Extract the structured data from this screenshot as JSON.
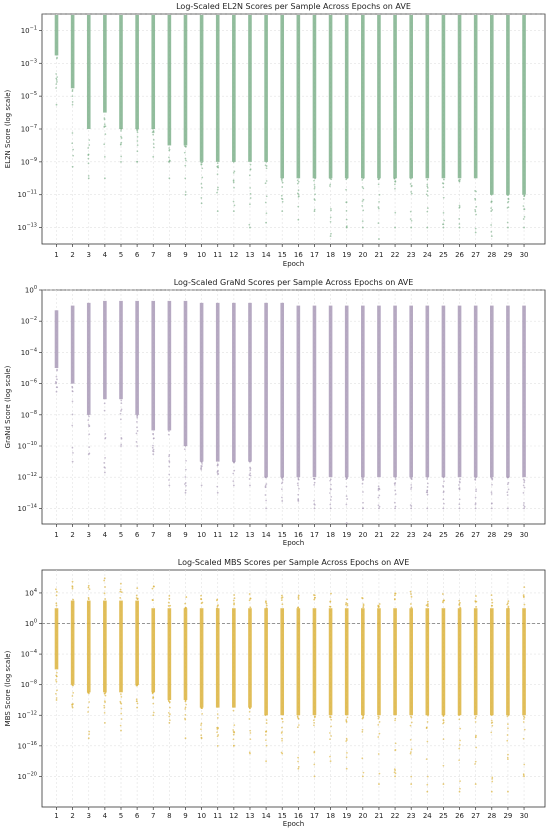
{
  "chart_data": [
    {
      "type": "scatter",
      "title": "Log-Scaled EL2N Scores per Sample Across Epochs on AVE",
      "xlabel": "Epoch",
      "ylabel": "EL2N Score (log scale)",
      "yscale": "log",
      "x": [
        1,
        2,
        3,
        4,
        5,
        6,
        7,
        8,
        9,
        10,
        11,
        12,
        13,
        14,
        15,
        16,
        17,
        18,
        19,
        20,
        21,
        22,
        23,
        24,
        25,
        26,
        27,
        28,
        29,
        30
      ],
      "xtick_labels": [
        "1",
        "2",
        "3",
        "4",
        "5",
        "6",
        "7",
        "8",
        "9",
        "10",
        "11",
        "12",
        "13",
        "14",
        "15",
        "16",
        "17",
        "18",
        "19",
        "20",
        "21",
        "22",
        "23",
        "24",
        "25",
        "26",
        "27",
        "28",
        "29",
        "30"
      ],
      "ylim": [
        1e-14,
        1
      ],
      "yticks": [
        {
          "value": 0.1,
          "exp": "-1"
        },
        {
          "value": 0.001,
          "exp": "-3"
        },
        {
          "value": 1e-05,
          "exp": "-5"
        },
        {
          "value": 1e-07,
          "exp": "-7"
        },
        {
          "value": 1e-09,
          "exp": "-9"
        },
        {
          "value": 1e-11,
          "exp": "-11"
        },
        {
          "value": 1e-13,
          "exp": "-13"
        }
      ],
      "reference_line": 1,
      "color": "#7fb28c",
      "grid": true,
      "dense_top": 1,
      "dense_bottom": [
        0.003,
        3e-05,
        1e-07,
        1e-06,
        1e-07,
        1e-07,
        1e-07,
        1e-08,
        1e-08,
        1e-09,
        1e-09,
        1e-09,
        1e-09,
        1e-09,
        1e-10,
        1e-10,
        1e-10,
        1e-10,
        1e-10,
        1e-10,
        1e-10,
        1e-10,
        1e-10,
        1e-10,
        1e-10,
        1e-10,
        1e-10,
        1e-11,
        1e-11,
        1e-11
      ],
      "min": [
        3e-06,
        5e-10,
        1e-10,
        1e-10,
        1e-09,
        1e-09,
        2e-09,
        1e-10,
        1e-11,
        3e-12,
        1e-12,
        1e-12,
        1e-13,
        2e-13,
        1e-12,
        3e-13,
        1e-12,
        3e-14,
        1e-13,
        1e-13,
        2e-14,
        1e-13,
        1e-13,
        1e-13,
        1e-13,
        1e-13,
        5e-14,
        3e-14,
        1e-13,
        1e-13
      ]
    },
    {
      "type": "scatter",
      "title": "Log-Scaled GraNd Scores per Sample Across Epochs on AVE",
      "xlabel": "Epoch",
      "ylabel": "GraNd Score (log scale)",
      "yscale": "log",
      "x": [
        1,
        2,
        3,
        4,
        5,
        6,
        7,
        8,
        9,
        10,
        11,
        12,
        13,
        14,
        15,
        16,
        17,
        18,
        19,
        20,
        21,
        22,
        23,
        24,
        25,
        26,
        27,
        28,
        29,
        30
      ],
      "xtick_labels": [
        "1",
        "2",
        "3",
        "4",
        "5",
        "6",
        "7",
        "8",
        "9",
        "10",
        "11",
        "12",
        "13",
        "14",
        "15",
        "16",
        "17",
        "18",
        "19",
        "20",
        "21",
        "22",
        "23",
        "24",
        "25",
        "26",
        "27",
        "28",
        "29",
        "30"
      ],
      "ylim": [
        1e-15,
        1
      ],
      "yticks": [
        {
          "value": 1,
          "exp": "0"
        },
        {
          "value": 0.01,
          "exp": "-2"
        },
        {
          "value": 0.0001,
          "exp": "-4"
        },
        {
          "value": 1e-06,
          "exp": "-6"
        },
        {
          "value": 1e-08,
          "exp": "-8"
        },
        {
          "value": 1e-10,
          "exp": "-10"
        },
        {
          "value": 1e-12,
          "exp": "-12"
        },
        {
          "value": 1e-14,
          "exp": "-14"
        }
      ],
      "reference_line": 1,
      "color": "#a99ab7",
      "grid": true,
      "dense_top": [
        0.05,
        0.1,
        0.15,
        0.2,
        0.2,
        0.2,
        0.2,
        0.2,
        0.2,
        0.15,
        0.15,
        0.15,
        0.15,
        0.15,
        0.15,
        0.1,
        0.1,
        0.1,
        0.1,
        0.1,
        0.1,
        0.1,
        0.1,
        0.1,
        0.1,
        0.1,
        0.1,
        0.1,
        0.1,
        0.1
      ],
      "dense_bottom": [
        1e-05,
        1e-06,
        1e-08,
        1e-07,
        1e-07,
        1e-08,
        1e-09,
        1e-09,
        1e-10,
        1e-11,
        1e-11,
        1e-11,
        1e-11,
        1e-12,
        1e-12,
        1e-12,
        1e-12,
        1e-12,
        1e-12,
        1e-12,
        1e-12,
        1e-12,
        1e-12,
        1e-12,
        1e-12,
        1e-12,
        1e-12,
        1e-12,
        1e-12,
        1e-12
      ],
      "min": [
        3e-07,
        1e-11,
        3e-11,
        2e-12,
        1e-10,
        1e-10,
        3e-11,
        3e-13,
        1e-13,
        3e-13,
        1e-13,
        3e-13,
        3e-13,
        1e-14,
        3e-14,
        3e-14,
        1e-14,
        1e-14,
        1e-15,
        1e-14,
        1e-14,
        1e-14,
        1e-14,
        1e-14,
        1e-14,
        1e-14,
        1e-14,
        1e-14,
        1e-14,
        1e-14
      ]
    },
    {
      "type": "scatter",
      "title": "Log-Scaled MBS Scores per Sample Across Epochs on AVE",
      "xlabel": "Epoch",
      "ylabel": "MBS Score (log scale)",
      "yscale": "log",
      "x": [
        1,
        2,
        3,
        4,
        5,
        6,
        7,
        8,
        9,
        10,
        11,
        12,
        13,
        14,
        15,
        16,
        17,
        18,
        19,
        20,
        21,
        22,
        23,
        24,
        25,
        26,
        27,
        28,
        29,
        30
      ],
      "xtick_labels": [
        "1",
        "2",
        "3",
        "4",
        "5",
        "6",
        "7",
        "8",
        "9",
        "10",
        "11",
        "12",
        "13",
        "14",
        "15",
        "16",
        "17",
        "18",
        "19",
        "20",
        "21",
        "22",
        "23",
        "24",
        "25",
        "26",
        "27",
        "28",
        "29",
        "30"
      ],
      "ylim": [
        1e-24,
        10000000.0
      ],
      "yticks": [
        {
          "value": 10000.0,
          "exp": "4"
        },
        {
          "value": 1,
          "exp": "0"
        },
        {
          "value": 0.0001,
          "exp": "-4"
        },
        {
          "value": 1e-08,
          "exp": "-8"
        },
        {
          "value": 1e-12,
          "exp": "-12"
        },
        {
          "value": 1e-16,
          "exp": "-16"
        },
        {
          "value": 1e-20,
          "exp": "-20"
        }
      ],
      "reference_line": 1,
      "color": "#dcb33c",
      "grid": true,
      "dense_top": [
        100.0,
        1000.0,
        1000.0,
        1000.0,
        1000.0,
        1000.0,
        100.0,
        100.0,
        100.0,
        100.0,
        100.0,
        100.0,
        100.0,
        100.0,
        100.0,
        100.0,
        100.0,
        100.0,
        100.0,
        100.0,
        100.0,
        100.0,
        100.0,
        100.0,
        100.0,
        100.0,
        100.0,
        100.0,
        100.0,
        100.0
      ],
      "dense_bottom": [
        1e-06,
        1e-08,
        1e-09,
        1e-09,
        1e-09,
        1e-08,
        1e-09,
        1e-10,
        1e-10,
        1e-11,
        1e-11,
        1e-11,
        1e-11,
        1e-12,
        1e-12,
        1e-12,
        1e-12,
        1e-12,
        1e-12,
        1e-12,
        1e-12,
        1e-12,
        1e-12,
        1e-12,
        1e-12,
        1e-12,
        1e-12,
        1e-12,
        1e-12,
        1e-12
      ],
      "max": [
        100000.0,
        1000000.0,
        100000.0,
        10000000.0,
        1000000.0,
        100000.0,
        100000.0,
        10000.0,
        10000.0,
        10000.0,
        10000.0,
        10000.0,
        10000.0,
        10000.0,
        10000.0,
        10000.0,
        10000.0,
        10000.0,
        10000.0,
        10000.0,
        1000.0,
        10000.0,
        100000.0,
        1000.0,
        10000.0,
        1000.0,
        10000.0,
        10000.0,
        1000.0,
        100000.0
      ],
      "min": [
        1e-10,
        1e-11,
        1e-15,
        1e-13,
        1e-14,
        1e-11,
        1e-12,
        1e-13,
        1e-15,
        1e-15,
        1e-16,
        1e-16,
        1e-17,
        1e-18,
        1e-17,
        1e-19,
        1e-20,
        1e-18,
        1e-19,
        1e-20,
        1e-21,
        1e-20,
        1e-21,
        1e-22,
        1e-21,
        1e-22,
        1e-21,
        1e-22,
        1e-22,
        1e-20
      ]
    }
  ]
}
